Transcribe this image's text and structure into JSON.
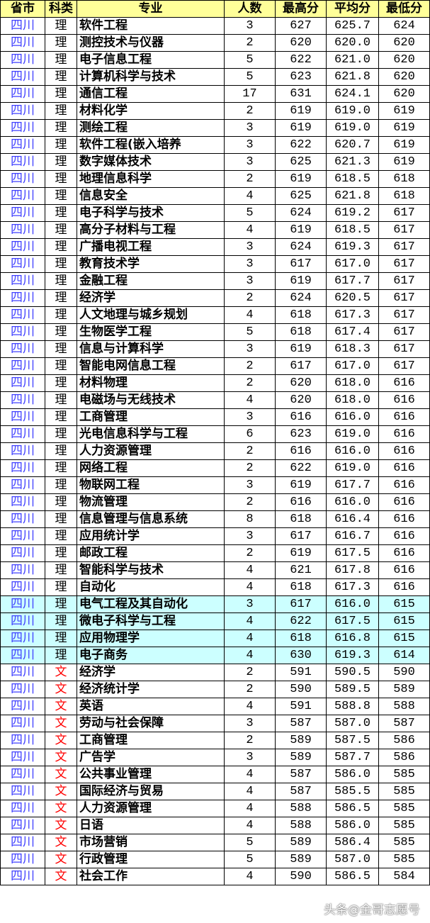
{
  "header": [
    "省市",
    "科类",
    "专业",
    "人数",
    "最高分",
    "平均分",
    "最低分"
  ],
  "colors": {
    "header_bg": "#ffff99",
    "province_text": "#3f3fff",
    "wen_text": "#ff0000",
    "highlight_bg": "#ccffff"
  },
  "rows": [
    {
      "p": "四川",
      "c": "理",
      "m": "软件工程",
      "n": "3",
      "max": "627",
      "avg": "625.7",
      "min": "624"
    },
    {
      "p": "四川",
      "c": "理",
      "m": "测控技术与仪器",
      "n": "2",
      "max": "620",
      "avg": "620.0",
      "min": "620"
    },
    {
      "p": "四川",
      "c": "理",
      "m": "电子信息工程",
      "n": "5",
      "max": "622",
      "avg": "621.0",
      "min": "620"
    },
    {
      "p": "四川",
      "c": "理",
      "m": "计算机科学与技术",
      "n": "5",
      "max": "623",
      "avg": "621.8",
      "min": "620"
    },
    {
      "p": "四川",
      "c": "理",
      "m": "通信工程",
      "n": "17",
      "max": "631",
      "avg": "624.1",
      "min": "620"
    },
    {
      "p": "四川",
      "c": "理",
      "m": "材料化学",
      "n": "2",
      "max": "619",
      "avg": "619.0",
      "min": "619"
    },
    {
      "p": "四川",
      "c": "理",
      "m": "测绘工程",
      "n": "3",
      "max": "619",
      "avg": "619.0",
      "min": "619"
    },
    {
      "p": "四川",
      "c": "理",
      "m": "软件工程(嵌入培养",
      "n": "3",
      "max": "622",
      "avg": "620.7",
      "min": "619"
    },
    {
      "p": "四川",
      "c": "理",
      "m": "数字媒体技术",
      "n": "3",
      "max": "625",
      "avg": "621.3",
      "min": "619"
    },
    {
      "p": "四川",
      "c": "理",
      "m": "地理信息科学",
      "n": "2",
      "max": "619",
      "avg": "618.5",
      "min": "618"
    },
    {
      "p": "四川",
      "c": "理",
      "m": "信息安全",
      "n": "4",
      "max": "625",
      "avg": "621.8",
      "min": "618"
    },
    {
      "p": "四川",
      "c": "理",
      "m": "电子科学与技术",
      "n": "5",
      "max": "624",
      "avg": "619.2",
      "min": "617"
    },
    {
      "p": "四川",
      "c": "理",
      "m": "高分子材料与工程",
      "n": "4",
      "max": "619",
      "avg": "618.5",
      "min": "617"
    },
    {
      "p": "四川",
      "c": "理",
      "m": "广播电视工程",
      "n": "3",
      "max": "624",
      "avg": "619.3",
      "min": "617"
    },
    {
      "p": "四川",
      "c": "理",
      "m": "教育技术学",
      "n": "3",
      "max": "617",
      "avg": "617.0",
      "min": "617"
    },
    {
      "p": "四川",
      "c": "理",
      "m": "金融工程",
      "n": "3",
      "max": "619",
      "avg": "617.7",
      "min": "617"
    },
    {
      "p": "四川",
      "c": "理",
      "m": "经济学",
      "n": "2",
      "max": "624",
      "avg": "620.5",
      "min": "617"
    },
    {
      "p": "四川",
      "c": "理",
      "m": "人文地理与城乡规划",
      "n": "4",
      "max": "618",
      "avg": "617.3",
      "min": "617"
    },
    {
      "p": "四川",
      "c": "理",
      "m": "生物医学工程",
      "n": "5",
      "max": "618",
      "avg": "617.4",
      "min": "617"
    },
    {
      "p": "四川",
      "c": "理",
      "m": "信息与计算科学",
      "n": "3",
      "max": "619",
      "avg": "618.3",
      "min": "617"
    },
    {
      "p": "四川",
      "c": "理",
      "m": "智能电网信息工程",
      "n": "2",
      "max": "617",
      "avg": "617.0",
      "min": "617"
    },
    {
      "p": "四川",
      "c": "理",
      "m": "材料物理",
      "n": "2",
      "max": "620",
      "avg": "618.0",
      "min": "616"
    },
    {
      "p": "四川",
      "c": "理",
      "m": "电磁场与无线技术",
      "n": "4",
      "max": "620",
      "avg": "618.0",
      "min": "616"
    },
    {
      "p": "四川",
      "c": "理",
      "m": "工商管理",
      "n": "3",
      "max": "616",
      "avg": "616.0",
      "min": "616"
    },
    {
      "p": "四川",
      "c": "理",
      "m": "光电信息科学与工程",
      "n": "6",
      "max": "623",
      "avg": "619.0",
      "min": "616"
    },
    {
      "p": "四川",
      "c": "理",
      "m": "人力资源管理",
      "n": "2",
      "max": "616",
      "avg": "616.0",
      "min": "616"
    },
    {
      "p": "四川",
      "c": "理",
      "m": "网络工程",
      "n": "2",
      "max": "622",
      "avg": "619.0",
      "min": "616"
    },
    {
      "p": "四川",
      "c": "理",
      "m": "物联网工程",
      "n": "3",
      "max": "619",
      "avg": "617.7",
      "min": "616"
    },
    {
      "p": "四川",
      "c": "理",
      "m": "物流管理",
      "n": "2",
      "max": "616",
      "avg": "616.0",
      "min": "616"
    },
    {
      "p": "四川",
      "c": "理",
      "m": "信息管理与信息系统",
      "n": "8",
      "max": "618",
      "avg": "616.4",
      "min": "616"
    },
    {
      "p": "四川",
      "c": "理",
      "m": "应用统计学",
      "n": "3",
      "max": "617",
      "avg": "616.7",
      "min": "616"
    },
    {
      "p": "四川",
      "c": "理",
      "m": "邮政工程",
      "n": "2",
      "max": "619",
      "avg": "617.5",
      "min": "616"
    },
    {
      "p": "四川",
      "c": "理",
      "m": "智能科学与技术",
      "n": "4",
      "max": "621",
      "avg": "617.8",
      "min": "616"
    },
    {
      "p": "四川",
      "c": "理",
      "m": "自动化",
      "n": "4",
      "max": "618",
      "avg": "617.3",
      "min": "616"
    },
    {
      "p": "四川",
      "c": "理",
      "m": "电气工程及其自动化",
      "n": "3",
      "max": "617",
      "avg": "616.0",
      "min": "615",
      "hl": true
    },
    {
      "p": "四川",
      "c": "理",
      "m": "微电子科学与工程",
      "n": "4",
      "max": "622",
      "avg": "617.5",
      "min": "615",
      "hl": true
    },
    {
      "p": "四川",
      "c": "理",
      "m": "应用物理学",
      "n": "4",
      "max": "618",
      "avg": "616.8",
      "min": "615",
      "hl": true
    },
    {
      "p": "四川",
      "c": "理",
      "m": "电子商务",
      "n": "4",
      "max": "630",
      "avg": "619.3",
      "min": "614",
      "hl": true
    },
    {
      "p": "四川",
      "c": "文",
      "m": "经济学",
      "n": "2",
      "max": "591",
      "avg": "590.5",
      "min": "590"
    },
    {
      "p": "四川",
      "c": "文",
      "m": "经济统计学",
      "n": "2",
      "max": "590",
      "avg": "589.5",
      "min": "589"
    },
    {
      "p": "四川",
      "c": "文",
      "m": "英语",
      "n": "4",
      "max": "591",
      "avg": "588.8",
      "min": "588"
    },
    {
      "p": "四川",
      "c": "文",
      "m": "劳动与社会保障",
      "n": "3",
      "max": "587",
      "avg": "587.0",
      "min": "587"
    },
    {
      "p": "四川",
      "c": "文",
      "m": "工商管理",
      "n": "2",
      "max": "589",
      "avg": "587.5",
      "min": "586"
    },
    {
      "p": "四川",
      "c": "文",
      "m": "广告学",
      "n": "3",
      "max": "589",
      "avg": "587.7",
      "min": "586"
    },
    {
      "p": "四川",
      "c": "文",
      "m": "公共事业管理",
      "n": "4",
      "max": "587",
      "avg": "586.0",
      "min": "585"
    },
    {
      "p": "四川",
      "c": "文",
      "m": "国际经济与贸易",
      "n": "4",
      "max": "587",
      "avg": "585.5",
      "min": "585"
    },
    {
      "p": "四川",
      "c": "文",
      "m": "人力资源管理",
      "n": "4",
      "max": "588",
      "avg": "586.5",
      "min": "585"
    },
    {
      "p": "四川",
      "c": "文",
      "m": "日语",
      "n": "4",
      "max": "588",
      "avg": "586.0",
      "min": "585"
    },
    {
      "p": "四川",
      "c": "文",
      "m": "市场营销",
      "n": "5",
      "max": "589",
      "avg": "586.4",
      "min": "585"
    },
    {
      "p": "四川",
      "c": "文",
      "m": "行政管理",
      "n": "5",
      "max": "589",
      "avg": "587.0",
      "min": "585"
    },
    {
      "p": "四川",
      "c": "文",
      "m": "社会工作",
      "n": "4",
      "max": "590",
      "avg": "586.5",
      "min": "584"
    }
  ],
  "watermark": "头条@金哥志愿号"
}
